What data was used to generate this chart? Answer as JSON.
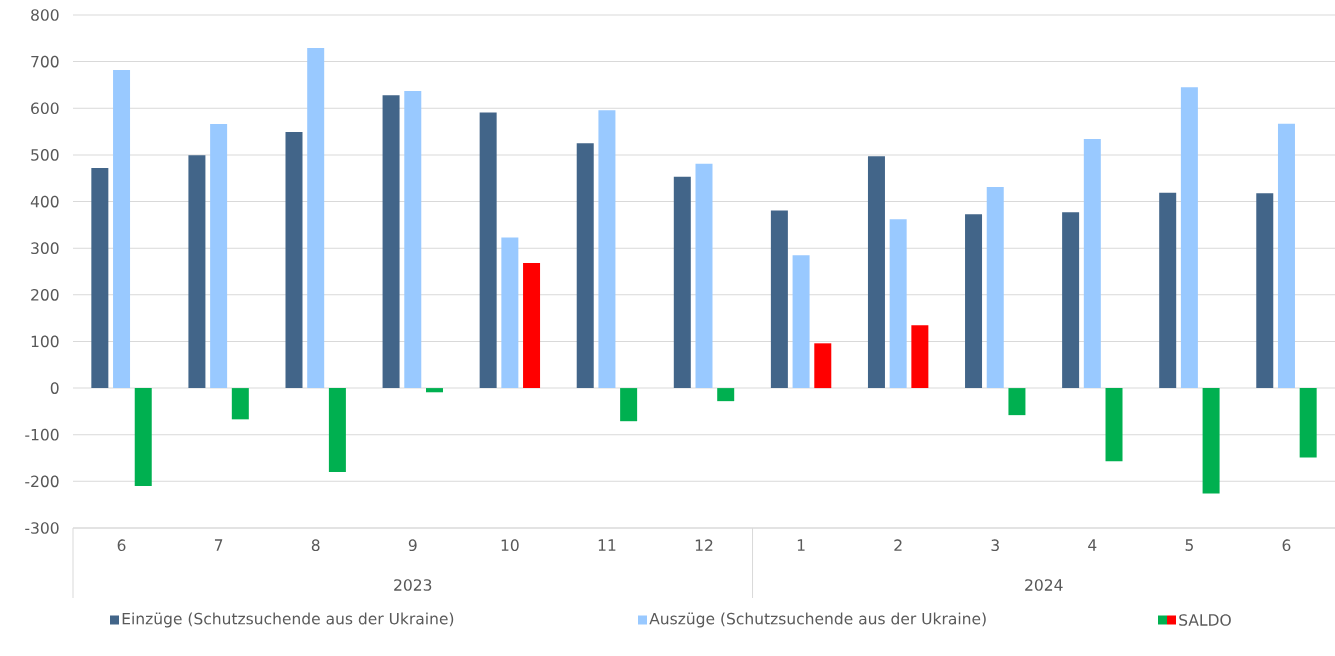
{
  "chart_data": {
    "type": "bar",
    "categories": [
      "6",
      "7",
      "8",
      "9",
      "10",
      "11",
      "12",
      "1",
      "2",
      "3",
      "4",
      "5",
      "6"
    ],
    "series": [
      {
        "name": "Einzüge (Schutzsuchende aus der Ukraine)",
        "color": "#426589",
        "values": [
          472,
          499,
          549,
          628,
          591,
          525,
          453,
          381,
          497,
          373,
          377,
          419,
          418
        ]
      },
      {
        "name": "Auszüge (Schutzsuchende aus der Ukraine)",
        "color": "#99c9ff",
        "values": [
          682,
          566,
          729,
          637,
          323,
          596,
          481,
          285,
          362,
          431,
          534,
          645,
          567
        ]
      },
      {
        "name": "SALDO",
        "colors": [
          "#00b050",
          "#00b050",
          "#00b050",
          "#00b050",
          "#ff0000",
          "#00b050",
          "#00b050",
          "#ff0000",
          "#ff0000",
          "#00b050",
          "#00b050",
          "#00b050",
          "#00b050"
        ],
        "values": [
          -210,
          -67,
          -180,
          -9,
          268,
          -71,
          -28,
          96,
          135,
          -58,
          -157,
          -226,
          -149
        ]
      }
    ],
    "annotations": [
      "2023",
      "2024"
    ],
    "ylim": [
      -300,
      800
    ],
    "yticks": [
      -300,
      -200,
      -100,
      0,
      100,
      200,
      300,
      400,
      500,
      600,
      700,
      800
    ],
    "grid": "y",
    "legend": "bottom"
  }
}
